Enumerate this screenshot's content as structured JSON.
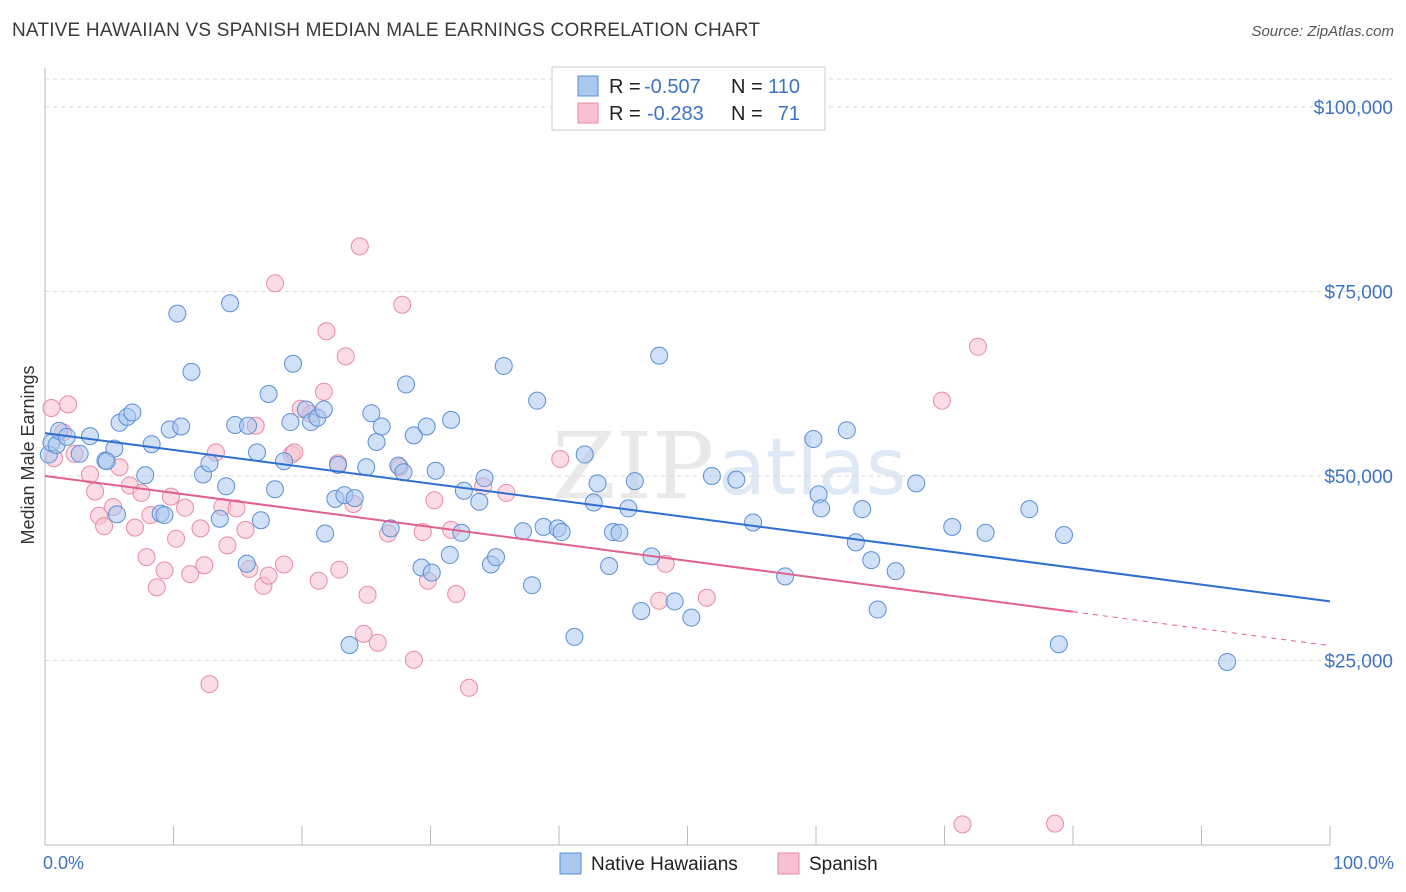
{
  "header": {
    "title": "NATIVE HAWAIIAN VS SPANISH MEDIAN MALE EARNINGS CORRELATION CHART",
    "source": "Source: ZipAtlas.com"
  },
  "legend_top": {
    "rows": [
      {
        "r_label": "R =",
        "r_value": "-0.507",
        "n_label": "N =",
        "n_value": "110"
      },
      {
        "r_label": "R =",
        "r_value": "-0.283",
        "n_label": "N =",
        "n_value": "71"
      }
    ]
  },
  "legend_bottom": {
    "items": [
      "Native Hawaiians",
      "Spanish"
    ]
  },
  "watermark": {
    "zip": "ZIP",
    "atlas": "atlas"
  },
  "colors": {
    "blue_fill": "#a9c7ef",
    "blue_stroke": "#5b8fd6",
    "blue_line": "#2f6fd0",
    "pink_fill": "#f7bfd0",
    "pink_stroke": "#e88aa8",
    "pink_line": "#e0608f",
    "grid": "#d9d9d9",
    "tick_text": "#3d73c4"
  },
  "chart_data": {
    "type": "scatter",
    "title": "NATIVE HAWAIIAN VS SPANISH MEDIAN MALE EARNINGS CORRELATION CHART",
    "xlabel": "",
    "ylabel": "Median Male Earnings",
    "xlim": [
      0,
      100
    ],
    "ylim": [
      0,
      105000
    ],
    "x_tick_labels": [
      "0.0%",
      "100.0%"
    ],
    "y_ticks": [
      25000,
      50000,
      75000,
      100000
    ],
    "y_tick_labels": [
      "$25,000",
      "$50,000",
      "$75,000",
      "$100,000"
    ],
    "grid": true,
    "legend_position": "top-center",
    "series": [
      {
        "name": "Native Hawaiians",
        "r": -0.507,
        "n": 110,
        "trend": {
          "x0": 0,
          "y0": 55800,
          "x1": 100,
          "y1": 33000
        },
        "points": [
          [
            0.3,
            52900
          ],
          [
            0.5,
            54500
          ],
          [
            0.9,
            54200
          ],
          [
            1.1,
            56100
          ],
          [
            1.7,
            55300
          ],
          [
            2.7,
            53000
          ],
          [
            3.5,
            55400
          ],
          [
            4.7,
            52100
          ],
          [
            5.4,
            53700
          ],
          [
            4.8,
            52000
          ],
          [
            5.6,
            44800
          ],
          [
            5.8,
            57200
          ],
          [
            6.4,
            58000
          ],
          [
            6.8,
            58600
          ],
          [
            7.8,
            50100
          ],
          [
            8.3,
            54300
          ],
          [
            9.0,
            44900
          ],
          [
            9.3,
            44700
          ],
          [
            9.7,
            56300
          ],
          [
            10.3,
            72000
          ],
          [
            10.6,
            56700
          ],
          [
            11.4,
            64100
          ],
          [
            12.3,
            50200
          ],
          [
            12.8,
            51700
          ],
          [
            13.6,
            44200
          ],
          [
            14.1,
            48600
          ],
          [
            14.4,
            73400
          ],
          [
            14.8,
            56900
          ],
          [
            15.7,
            38100
          ],
          [
            15.8,
            56800
          ],
          [
            16.5,
            53200
          ],
          [
            16.8,
            44000
          ],
          [
            17.4,
            61100
          ],
          [
            17.9,
            48200
          ],
          [
            18.6,
            52000
          ],
          [
            19.1,
            57300
          ],
          [
            19.3,
            65200
          ],
          [
            20.3,
            59000
          ],
          [
            20.7,
            57300
          ],
          [
            21.2,
            57900
          ],
          [
            21.7,
            59000
          ],
          [
            21.8,
            42200
          ],
          [
            22.6,
            46900
          ],
          [
            22.8,
            51500
          ],
          [
            23.3,
            47400
          ],
          [
            23.7,
            27100
          ],
          [
            24.1,
            47000
          ],
          [
            25.0,
            51200
          ],
          [
            25.4,
            58500
          ],
          [
            25.8,
            54600
          ],
          [
            26.2,
            56700
          ],
          [
            26.9,
            42900
          ],
          [
            27.5,
            51400
          ],
          [
            27.9,
            50500
          ],
          [
            28.1,
            62400
          ],
          [
            28.7,
            55500
          ],
          [
            29.3,
            37600
          ],
          [
            29.7,
            56700
          ],
          [
            30.1,
            36900
          ],
          [
            30.4,
            50700
          ],
          [
            31.5,
            39300
          ],
          [
            31.6,
            57600
          ],
          [
            32.4,
            42300
          ],
          [
            32.6,
            48000
          ],
          [
            33.8,
            46500
          ],
          [
            34.2,
            49700
          ],
          [
            34.7,
            38000
          ],
          [
            35.1,
            39000
          ],
          [
            35.7,
            64900
          ],
          [
            37.2,
            42500
          ],
          [
            37.9,
            35200
          ],
          [
            38.3,
            60200
          ],
          [
            38.8,
            43100
          ],
          [
            39.9,
            42900
          ],
          [
            40.2,
            42400
          ],
          [
            41.2,
            28200
          ],
          [
            42.0,
            52900
          ],
          [
            42.7,
            46400
          ],
          [
            43.0,
            49000
          ],
          [
            43.9,
            37800
          ],
          [
            44.2,
            42400
          ],
          [
            44.7,
            42300
          ],
          [
            45.4,
            45600
          ],
          [
            45.9,
            49300
          ],
          [
            46.4,
            31700
          ],
          [
            47.2,
            39100
          ],
          [
            47.8,
            66300
          ],
          [
            49.0,
            33000
          ],
          [
            50.3,
            30800
          ],
          [
            51.9,
            50000
          ],
          [
            53.8,
            49500
          ],
          [
            55.1,
            43700
          ],
          [
            57.6,
            36400
          ],
          [
            59.8,
            55000
          ],
          [
            60.2,
            47500
          ],
          [
            60.4,
            45600
          ],
          [
            62.4,
            56200
          ],
          [
            63.1,
            41000
          ],
          [
            63.6,
            45500
          ],
          [
            64.3,
            38600
          ],
          [
            64.8,
            31900
          ],
          [
            66.2,
            37100
          ],
          [
            67.8,
            49000
          ],
          [
            70.6,
            43100
          ],
          [
            73.2,
            42300
          ],
          [
            76.6,
            45500
          ],
          [
            78.9,
            27200
          ],
          [
            79.3,
            42000
          ],
          [
            92.0,
            24800
          ]
        ]
      },
      {
        "name": "Spanish",
        "r": -0.283,
        "n": 71,
        "trend": {
          "x0": 0,
          "y0": 50000,
          "x1": 80,
          "y1": 31600
        },
        "trend_dashed_to": {
          "x": 100,
          "y": 27000
        },
        "points": [
          [
            0.5,
            59200
          ],
          [
            0.7,
            52400
          ],
          [
            1.4,
            55900
          ],
          [
            1.8,
            59700
          ],
          [
            2.3,
            53000
          ],
          [
            3.5,
            50200
          ],
          [
            3.9,
            47900
          ],
          [
            4.2,
            44600
          ],
          [
            4.6,
            43200
          ],
          [
            5.3,
            45800
          ],
          [
            5.8,
            51200
          ],
          [
            6.6,
            48700
          ],
          [
            7.0,
            43000
          ],
          [
            7.5,
            47700
          ],
          [
            7.9,
            39000
          ],
          [
            8.2,
            44700
          ],
          [
            8.7,
            34900
          ],
          [
            9.3,
            37200
          ],
          [
            9.8,
            47200
          ],
          [
            10.2,
            41500
          ],
          [
            10.9,
            45700
          ],
          [
            11.3,
            36700
          ],
          [
            12.1,
            42900
          ],
          [
            12.4,
            37900
          ],
          [
            12.8,
            21800
          ],
          [
            13.3,
            53200
          ],
          [
            13.8,
            45800
          ],
          [
            14.2,
            40600
          ],
          [
            14.9,
            45600
          ],
          [
            15.6,
            42700
          ],
          [
            15.9,
            37400
          ],
          [
            16.4,
            56800
          ],
          [
            17.0,
            35100
          ],
          [
            17.4,
            36500
          ],
          [
            17.9,
            76100
          ],
          [
            18.6,
            38000
          ],
          [
            19.2,
            52900
          ],
          [
            19.4,
            53200
          ],
          [
            19.9,
            59100
          ],
          [
            20.7,
            58400
          ],
          [
            21.3,
            35800
          ],
          [
            21.7,
            61400
          ],
          [
            21.9,
            69600
          ],
          [
            22.8,
            51700
          ],
          [
            22.9,
            37300
          ],
          [
            23.4,
            66200
          ],
          [
            24.0,
            46200
          ],
          [
            24.5,
            81100
          ],
          [
            24.8,
            28600
          ],
          [
            25.1,
            33900
          ],
          [
            25.9,
            27400
          ],
          [
            26.7,
            42200
          ],
          [
            27.6,
            51200
          ],
          [
            27.8,
            73200
          ],
          [
            28.7,
            25100
          ],
          [
            29.4,
            42400
          ],
          [
            29.8,
            35800
          ],
          [
            30.3,
            46700
          ],
          [
            31.6,
            42700
          ],
          [
            32.0,
            34000
          ],
          [
            33.0,
            21300
          ],
          [
            34.1,
            48600
          ],
          [
            35.9,
            47700
          ],
          [
            40.1,
            52300
          ],
          [
            47.8,
            33100
          ],
          [
            48.3,
            38100
          ],
          [
            51.5,
            33500
          ],
          [
            69.8,
            60200
          ],
          [
            72.6,
            67500
          ],
          [
            71.4,
            2800
          ],
          [
            78.6,
            2900
          ]
        ]
      }
    ]
  }
}
